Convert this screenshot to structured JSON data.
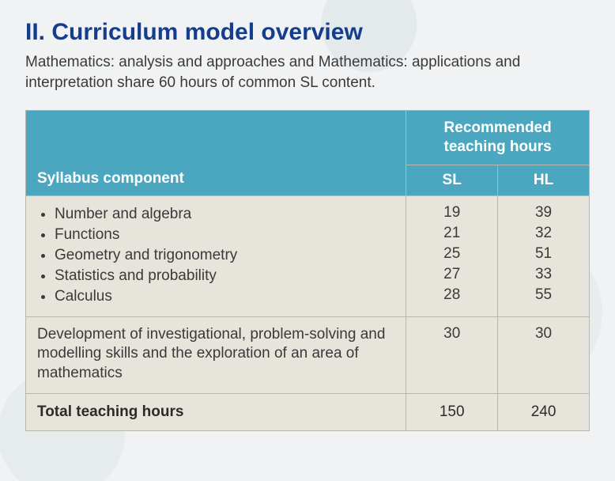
{
  "colors": {
    "heading": "#143d8d",
    "body_text": "#3a3a3a",
    "table_header_bg": "#4aa7bf",
    "table_header_text": "#ffffff",
    "table_body_bg": "#e6e4db",
    "table_border": "#b9b7ac",
    "page_bg": "#eef1f2"
  },
  "typography": {
    "heading_fontsize_pt": 22,
    "body_fontsize_pt": 14,
    "table_fontsize_pt": 14,
    "heading_weight": 700,
    "font_family": "Segoe UI / Helvetica Neue / Arial"
  },
  "heading": "II. Curriculum model overview",
  "intro": "Mathematics: analysis and approaches and Mathematics: applications and interpretation share 60 hours of common SL content.",
  "table": {
    "type": "table",
    "column_widths_pct": [
      67.5,
      16.25,
      16.25
    ],
    "columns": {
      "syllabus_label": "Syllabus component",
      "recommended_label": "Recommended teaching hours",
      "sl_label": "SL",
      "hl_label": "HL"
    },
    "topics": [
      {
        "name": "Number and algebra",
        "sl": 19,
        "hl": 39
      },
      {
        "name": "Functions",
        "sl": 21,
        "hl": 32
      },
      {
        "name": "Geometry and trigonometry",
        "sl": 25,
        "hl": 51
      },
      {
        "name": "Statistics and probability",
        "sl": 27,
        "hl": 33
      },
      {
        "name": "Calculus",
        "sl": 28,
        "hl": 55
      }
    ],
    "development": {
      "label": "Development of investigational, problem-solving and modelling skills and the exploration of an area of mathematics",
      "sl": 30,
      "hl": 30
    },
    "total": {
      "label": "Total teaching hours",
      "sl": 150,
      "hl": 240
    }
  }
}
